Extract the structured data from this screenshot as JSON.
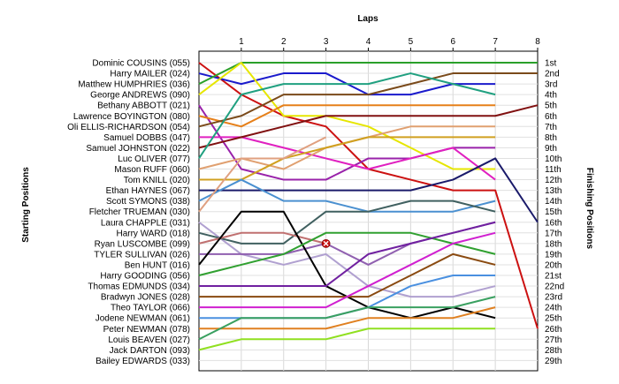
{
  "chart_data": {
    "type": "line",
    "title": "Laps",
    "ylabel_left": "Starting Positions",
    "ylabel_right": "Finishing Positions",
    "x": [
      0,
      1,
      2,
      3,
      4,
      5,
      6,
      7,
      8
    ],
    "x_tick_labels": [
      "1",
      "2",
      "3",
      "4",
      "5",
      "6",
      "7",
      "8"
    ],
    "position_labels": [
      "1st",
      "2nd",
      "3rd",
      "4th",
      "5th",
      "6th",
      "7th",
      "8th",
      "9th",
      "10th",
      "11th",
      "12th",
      "13th",
      "14th",
      "15th",
      "16th",
      "17th",
      "18th",
      "19th",
      "20th",
      "21st",
      "22nd",
      "23rd",
      "24th",
      "25th",
      "26th",
      "27th",
      "28th",
      "29th"
    ],
    "grid": true,
    "series": [
      {
        "name": "Dominic COUSINS (055)",
        "color": "#cc1111",
        "values": [
          1,
          4,
          6,
          7,
          11,
          12,
          13,
          13,
          26
        ]
      },
      {
        "name": "Harry MAILER (024)",
        "color": "#1a1acc",
        "values": [
          2,
          3,
          2,
          2,
          4,
          4,
          3,
          3,
          null
        ]
      },
      {
        "name": "Matthew HUMPHRIES (036)",
        "color": "#2aa02a",
        "values": [
          3,
          1,
          1,
          1,
          1,
          1,
          1,
          1,
          1
        ]
      },
      {
        "name": "George ANDREWS (090)",
        "color": "#e6e600",
        "values": [
          4,
          1,
          6,
          6,
          7,
          9,
          11,
          11,
          null
        ]
      },
      {
        "name": "Bethany ABBOTT (021)",
        "color": "#9922aa",
        "values": [
          5,
          11,
          12,
          12,
          10,
          10,
          9,
          9,
          null
        ]
      },
      {
        "name": "Lawrence BOYINGTON (080)",
        "color": "#e6801a",
        "values": [
          6,
          7,
          5,
          5,
          5,
          5,
          5,
          5,
          null
        ]
      },
      {
        "name": "Oli ELLIS-RICHARDSON (054)",
        "color": "#7a4a1a",
        "values": [
          7,
          6,
          4,
          4,
          4,
          3,
          2,
          2,
          2
        ]
      },
      {
        "name": "Samuel DOBBS (047)",
        "color": "#e020c0",
        "values": [
          8,
          8,
          9,
          10,
          11,
          10,
          9,
          12,
          null
        ]
      },
      {
        "name": "Samuel JOHNSTON (022)",
        "color": "#801010",
        "values": [
          9,
          8,
          7,
          6,
          6,
          6,
          6,
          6,
          5
        ]
      },
      {
        "name": "Luc OLIVER (077)",
        "color": "#20a080",
        "values": [
          10,
          4,
          3,
          3,
          3,
          2,
          3,
          4,
          null
        ]
      },
      {
        "name": "Mason RUFF (060)",
        "color": "#e0a070",
        "values": [
          11,
          10,
          11,
          9,
          8,
          7,
          7,
          7,
          null
        ]
      },
      {
        "name": "Tom KNILL (020)",
        "color": "#d0a020",
        "values": [
          12,
          12,
          10,
          9,
          8,
          8,
          8,
          8,
          null
        ]
      },
      {
        "name": "Ethan HAYNES (067)",
        "color": "#1a1a6a",
        "values": [
          13,
          13,
          13,
          13,
          13,
          13,
          12,
          10,
          16
        ]
      },
      {
        "name": "Scott SYMONS (038)",
        "color": "#4a90d0",
        "values": [
          14,
          12,
          14,
          14,
          15,
          15,
          15,
          14,
          null
        ]
      },
      {
        "name": "Fletcher TRUEMAN (030)",
        "color": "#e0a080",
        "values": [
          15,
          10,
          10,
          8,
          null,
          null,
          null,
          null,
          null
        ]
      },
      {
        "name": "Laura CHAPPLE (031)",
        "color": "#b0a0d0",
        "values": [
          16,
          19,
          20,
          19,
          22,
          23,
          23,
          22,
          null
        ]
      },
      {
        "name": "Harry WARD (018)",
        "color": "#406060",
        "values": [
          17,
          18,
          18,
          15,
          15,
          14,
          14,
          15,
          null
        ]
      },
      {
        "name": "Ryan LUSCOMBE (099)",
        "color": "#c07070",
        "values": [
          18,
          17,
          17,
          18,
          null,
          null,
          null,
          null,
          null
        ]
      },
      {
        "name": "TYLER SULLIVAN (026)",
        "color": "#9060b0",
        "values": [
          19,
          19,
          19,
          18,
          20,
          18,
          17,
          16,
          null
        ]
      },
      {
        "name": "Ben HUNT (016)",
        "color": "#000000",
        "values": [
          20,
          15,
          15,
          22,
          24,
          25,
          24,
          25,
          null
        ]
      },
      {
        "name": "Harry GOODING (056)",
        "color": "#30a030",
        "values": [
          21,
          20,
          19,
          17,
          17,
          17,
          18,
          19,
          null
        ]
      },
      {
        "name": "Thomas EDMUNDS (034)",
        "color": "#7020a0",
        "values": [
          22,
          22,
          22,
          22,
          19,
          18,
          17,
          16,
          null
        ]
      },
      {
        "name": "Bradwyn JONES (028)",
        "color": "#8a4a10",
        "values": [
          23,
          23,
          23,
          23,
          23,
          21,
          19,
          20,
          null
        ]
      },
      {
        "name": "Theo TAYLOR (066)",
        "color": "#d020d0",
        "values": [
          24,
          24,
          24,
          24,
          22,
          20,
          18,
          17,
          null
        ]
      },
      {
        "name": "Jodene NEWMAN (061)",
        "color": "#4a90e0",
        "values": [
          25,
          25,
          25,
          25,
          24,
          22,
          21,
          21,
          null
        ]
      },
      {
        "name": "Peter NEWMAN (078)",
        "color": "#e08020",
        "values": [
          26,
          26,
          26,
          26,
          25,
          25,
          25,
          24,
          null
        ]
      },
      {
        "name": "Louis BEAVEN (027)",
        "color": "#3aa060",
        "values": [
          27,
          25,
          25,
          25,
          24,
          24,
          24,
          23,
          null
        ]
      },
      {
        "name": "Jack DARTON (093)",
        "color": "#90e020",
        "values": [
          28,
          27,
          27,
          27,
          26,
          26,
          26,
          26,
          null
        ]
      },
      {
        "name": "Bailey EDWARDS (033)",
        "color": "#ffffff",
        "values": [
          29,
          null,
          null,
          null,
          null,
          null,
          null,
          null,
          null
        ]
      }
    ],
    "retired_marker": {
      "series": "Ryan LUSCOMBE (099)",
      "x": 3,
      "y": 18
    }
  }
}
